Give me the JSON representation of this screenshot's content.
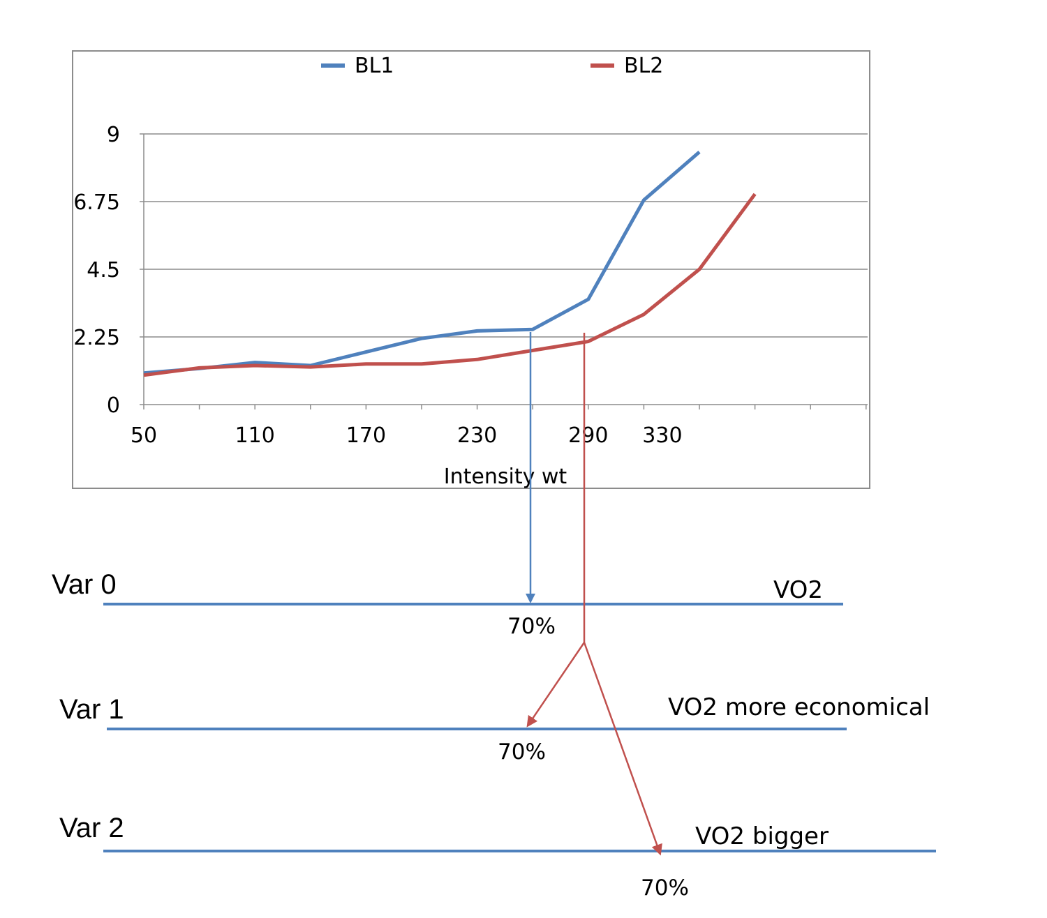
{
  "chart_data": {
    "type": "line",
    "title": "",
    "xlabel": "Intensity wt",
    "ylabel": "",
    "x": [
      50,
      80,
      110,
      140,
      170,
      200,
      230,
      260,
      290,
      320,
      350,
      380
    ],
    "x_tick_labels": [
      "50",
      "110",
      "170",
      "230",
      "290",
      "330"
    ],
    "y_tick_labels": [
      "0",
      "2.25",
      "4.5",
      "6.75",
      "9"
    ],
    "ylim": [
      0,
      9
    ],
    "grid": true,
    "legend_position": "top",
    "series": [
      {
        "name": "BL1",
        "color": "#4f81bd",
        "values": [
          1.05,
          1.2,
          1.4,
          1.3,
          1.75,
          2.2,
          2.45,
          2.5,
          3.5,
          6.8,
          8.4,
          null
        ]
      },
      {
        "name": "BL2",
        "color": "#c0504d",
        "values": [
          0.98,
          1.22,
          1.3,
          1.25,
          1.35,
          1.35,
          1.5,
          1.8,
          2.1,
          3.0,
          4.5,
          7.0
        ]
      }
    ]
  },
  "diagram": {
    "rows": [
      {
        "var_label": "Var 0",
        "vo2_label": "VO2",
        "percent": "70%"
      },
      {
        "var_label": "Var 1",
        "vo2_label": "VO2 more economical",
        "percent": "70%"
      },
      {
        "var_label": "Var 2",
        "vo2_label": "VO2 bigger",
        "percent": "70%"
      }
    ],
    "colors": {
      "line": "#4f81bd",
      "arrow_blue": "#4f81bd",
      "arrow_red": "#c0504d"
    }
  }
}
